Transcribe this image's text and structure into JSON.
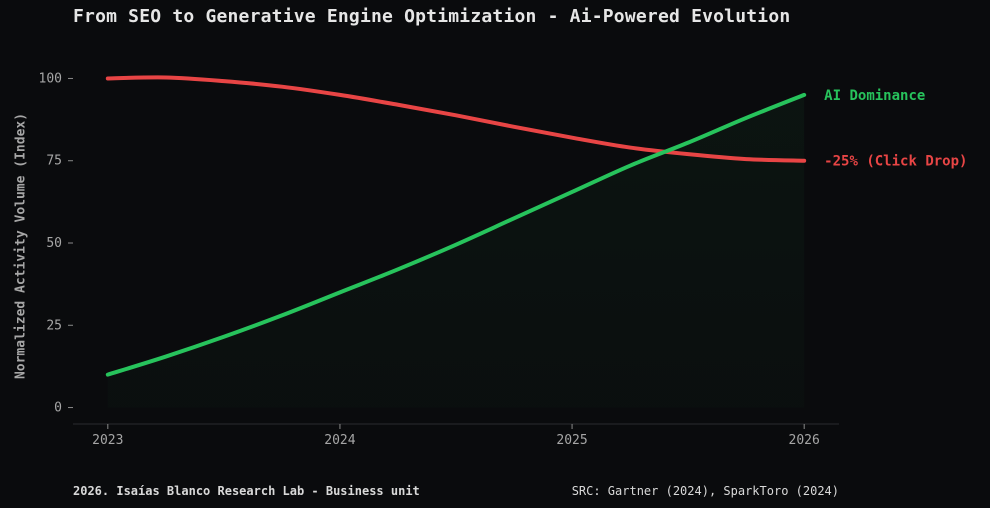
{
  "chart_data": {
    "type": "line",
    "title": "From SEO to Generative Engine Optimization - Ai-Powered Evolution",
    "xlabel": "",
    "ylabel": "Normalized Activity Volume (Index)",
    "xlim": [
      2022.85,
      2026.15
    ],
    "ylim": [
      -5,
      105
    ],
    "x_ticks": [
      2023,
      2024,
      2025,
      2026
    ],
    "x_tick_labels": [
      "2023",
      "2024",
      "2025",
      "2026"
    ],
    "y_ticks": [
      0,
      25,
      50,
      75,
      100
    ],
    "y_tick_labels": [
      "0",
      "25",
      "50",
      "75",
      "100"
    ],
    "grid": false,
    "legend": "none",
    "series": [
      {
        "color": "#e84545",
        "end_label": "-25% (Click Drop)",
        "x": [
          2023.0,
          2023.25,
          2023.5,
          2023.75,
          2024.0,
          2024.25,
          2024.5,
          2024.75,
          2025.0,
          2025.25,
          2025.5,
          2025.75,
          2026.0
        ],
        "y": [
          100,
          100.3,
          99.2,
          97.5,
          95.0,
          92.0,
          88.8,
          85.3,
          82.0,
          79.0,
          77.0,
          75.5,
          75.0
        ]
      },
      {
        "color": "#27c35c",
        "end_label": "AI Dominance",
        "fill": true,
        "x": [
          2023.0,
          2023.25,
          2023.5,
          2023.75,
          2024.0,
          2024.25,
          2024.5,
          2024.75,
          2025.0,
          2025.25,
          2025.5,
          2025.75,
          2026.0
        ],
        "y": [
          10,
          15.5,
          21.5,
          28.0,
          35.0,
          42.0,
          49.5,
          57.5,
          65.5,
          73.5,
          80.5,
          88.0,
          95.0
        ]
      }
    ]
  },
  "footer": {
    "left": "2026. Isaías Blanco Research Lab - Business unit",
    "right": "SRC: Gartner (2024), SparkToro (2024)"
  }
}
